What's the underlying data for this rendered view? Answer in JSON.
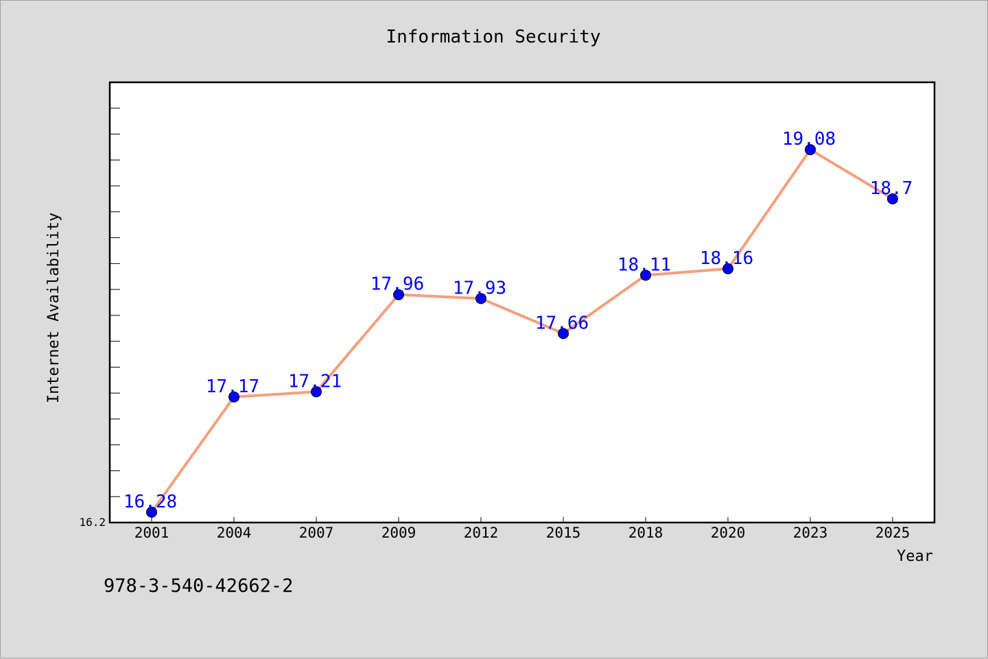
{
  "chart_data": {
    "type": "line",
    "title": "Information Security",
    "xlabel": "Year",
    "ylabel": "Internet Availability",
    "categories": [
      "2001",
      "2004",
      "2007",
      "2009",
      "2012",
      "2015",
      "2018",
      "2020",
      "2023",
      "2025"
    ],
    "values": [
      16.28,
      17.17,
      17.21,
      17.96,
      17.93,
      17.66,
      18.11,
      18.16,
      19.08,
      18.7
    ],
    "data_labels": [
      "16.28",
      "17.17",
      "17.21",
      "17.96",
      "17.93",
      "17.66",
      "18.11",
      "18.16",
      "19.08",
      "18.7"
    ],
    "ylim": [
      16.2,
      19.6
    ],
    "y_tick_label": "16.2",
    "grid": false,
    "line_color": "#f4a07c",
    "marker_color": "#0000ff",
    "label_color": "#0000ff"
  },
  "footer": {
    "isbn": "978-3-540-42662-2"
  }
}
